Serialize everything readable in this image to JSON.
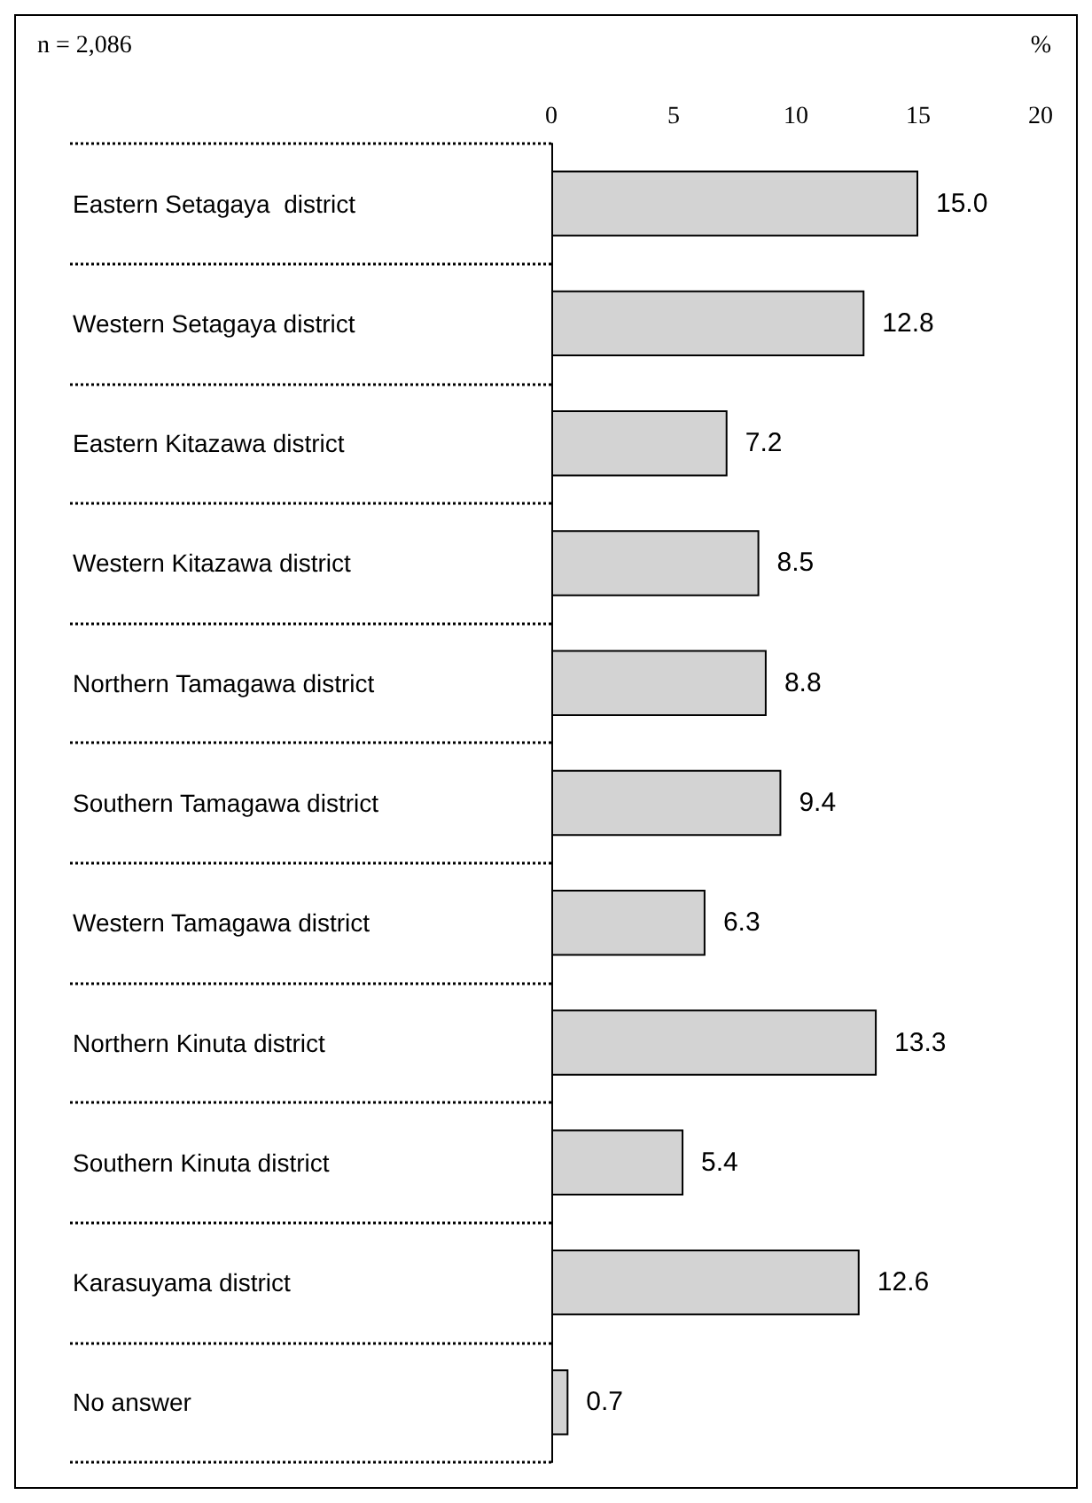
{
  "chart_data": {
    "type": "bar",
    "orientation": "horizontal",
    "categories": [
      "Eastern Setagaya  district",
      "Western Setagaya district",
      "Eastern Kitazawa district",
      "Western Kitazawa district",
      "Northern Tamagawa district",
      "Southern Tamagawa district",
      "Western Tamagawa district",
      "Northern Kinuta district",
      "Southern Kinuta district",
      "Karasuyama district",
      "No answer"
    ],
    "values": [
      15.0,
      12.8,
      7.2,
      8.5,
      8.8,
      9.4,
      6.3,
      13.3,
      5.4,
      12.6,
      0.7
    ],
    "value_labels": [
      "15.0",
      "12.8",
      "7.2",
      "8.5",
      "8.8",
      "9.4",
      "6.3",
      "13.3",
      "5.4",
      "12.6",
      "0.7"
    ],
    "color": "#d3d3d3",
    "xlim": [
      0,
      20
    ],
    "xticks": [
      0,
      5,
      10,
      15,
      20
    ],
    "xlabel": "%",
    "annotations": [
      "n = 2,086"
    ],
    "grid": false
  }
}
